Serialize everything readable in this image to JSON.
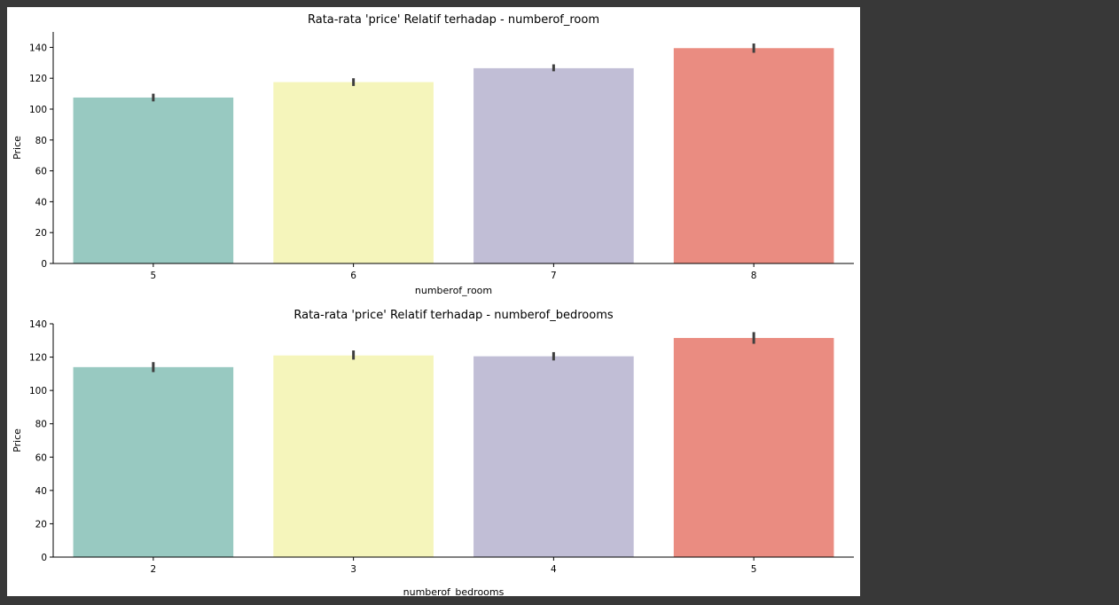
{
  "chart_data": [
    {
      "type": "bar",
      "title": "Rata-rata 'price' Relatif terhadap - numberof_room",
      "xlabel": "numberof_room",
      "ylabel": "Price",
      "categories": [
        "5",
        "6",
        "7",
        "8"
      ],
      "values": [
        107.5,
        117.5,
        126.5,
        139.5
      ],
      "error_bars": [
        [
          105,
          110
        ],
        [
          115,
          120
        ],
        [
          124.5,
          129
        ],
        [
          136.5,
          142.5
        ]
      ],
      "ylim": [
        0,
        150
      ],
      "yticks": [
        0,
        20,
        40,
        60,
        80,
        100,
        120,
        140
      ],
      "colors": [
        "#98c9c1",
        "#f5f5bb",
        "#c1bed6",
        "#ea8c81"
      ],
      "grid": false
    },
    {
      "type": "bar",
      "title": "Rata-rata 'price' Relatif terhadap - numberof_bedrooms",
      "xlabel": "numberof_bedrooms",
      "ylabel": "Price",
      "categories": [
        "2",
        "3",
        "4",
        "5"
      ],
      "values": [
        114,
        121,
        120.5,
        131.5
      ],
      "error_bars": [
        [
          111,
          117
        ],
        [
          118.5,
          124
        ],
        [
          118,
          123
        ],
        [
          128,
          135
        ]
      ],
      "ylim": [
        0,
        140
      ],
      "yticks": [
        0,
        20,
        40,
        60,
        80,
        100,
        120,
        140
      ],
      "colors": [
        "#98c9c1",
        "#f5f5bb",
        "#c1bed6",
        "#ea8c81"
      ],
      "grid": false
    }
  ]
}
